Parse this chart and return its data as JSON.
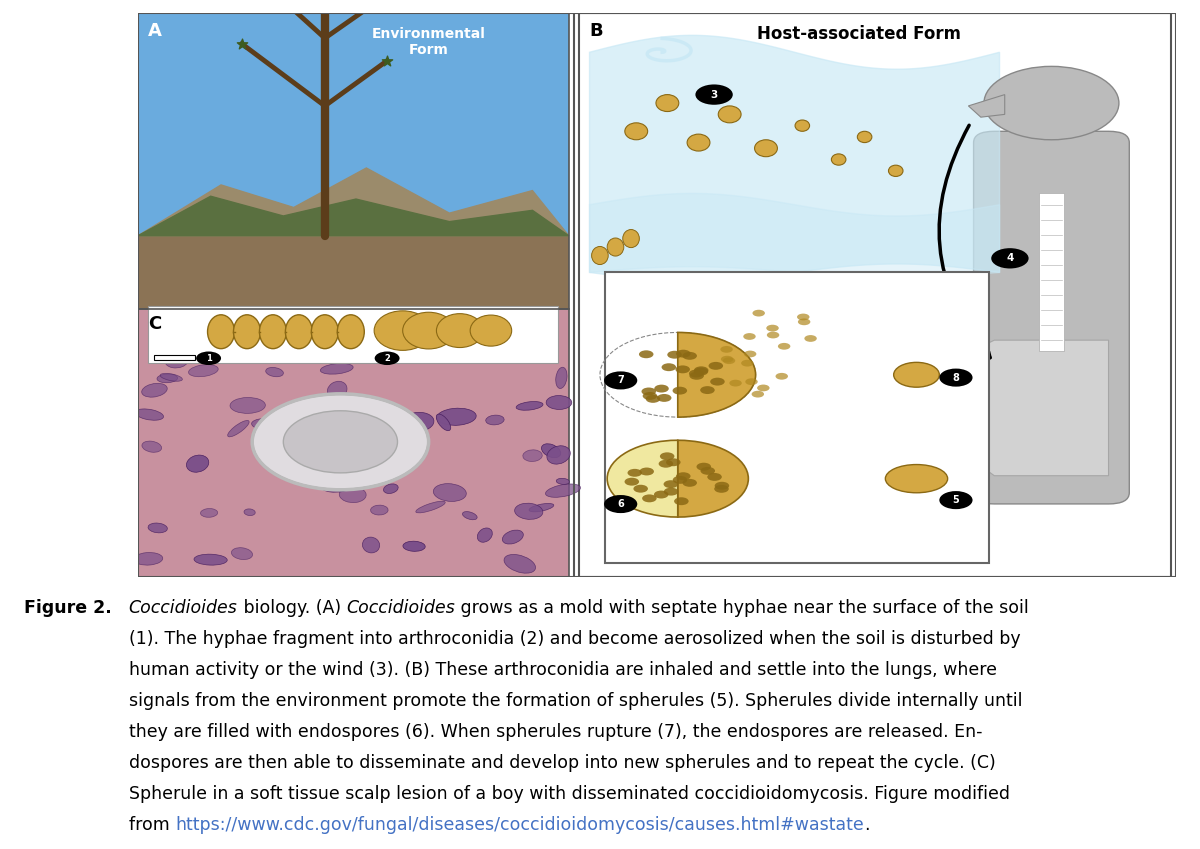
{
  "figure_label": "Figure 2.",
  "panel_A_label": "A",
  "panel_B_label": "B",
  "panel_C_label": "C",
  "panel_A_title": "Environmental\nForm",
  "panel_B_title": "Host-associated Form",
  "background_color": "#ffffff",
  "caption_fontsize": 12.5,
  "label_fontsize": 13,
  "url_color": "#4472c4",
  "text_color": "#000000",
  "fig_label_fontsize": 12.5,
  "border_color": "#555555",
  "spore_fill": "#D4A843",
  "spore_edge": "#8B6914",
  "sky_color": "#6AABDE",
  "ground_color": "#A0845C",
  "veg_color": "#5A7A3A",
  "micro_bg": "#C8919F",
  "micro_cell_fill": "#7B4F8A",
  "micro_cell_edge": "#4A2060",
  "gray_figure": "#BBBBBB",
  "gray_figure_edge": "#888888",
  "airflow_color": "#C8E8F5",
  "cycle_border": "#666666"
}
